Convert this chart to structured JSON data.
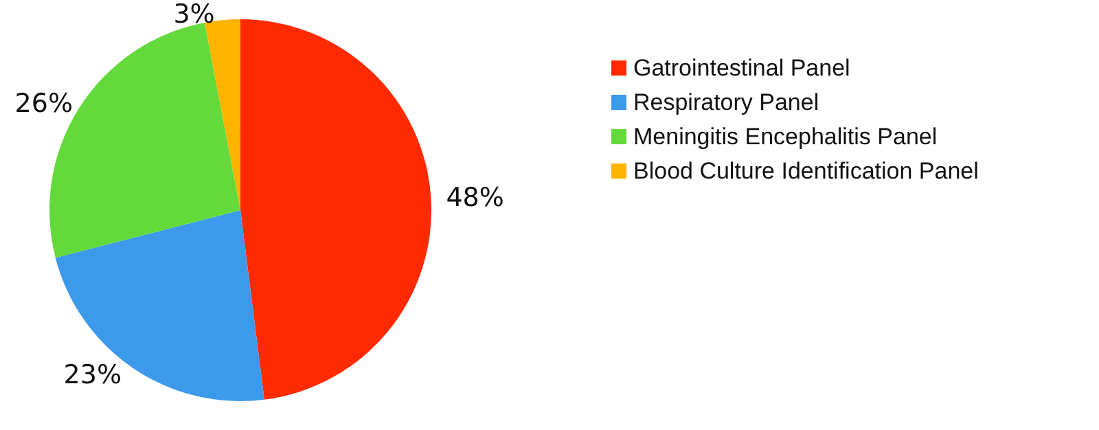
{
  "chart_data": {
    "type": "pie",
    "categories": [
      "Gatrointestinal Panel",
      "Respiratory Panel",
      "Meningitis Encephalitis Panel",
      "Blood Culture Identification Panel"
    ],
    "values": [
      48,
      23,
      26,
      3
    ],
    "value_labels": [
      "48%",
      "23%",
      "26%",
      "3%"
    ],
    "colors": [
      "#ff2a00",
      "#3d99ea",
      "#64d93c",
      "#ffb400"
    ],
    "legend": "right"
  }
}
